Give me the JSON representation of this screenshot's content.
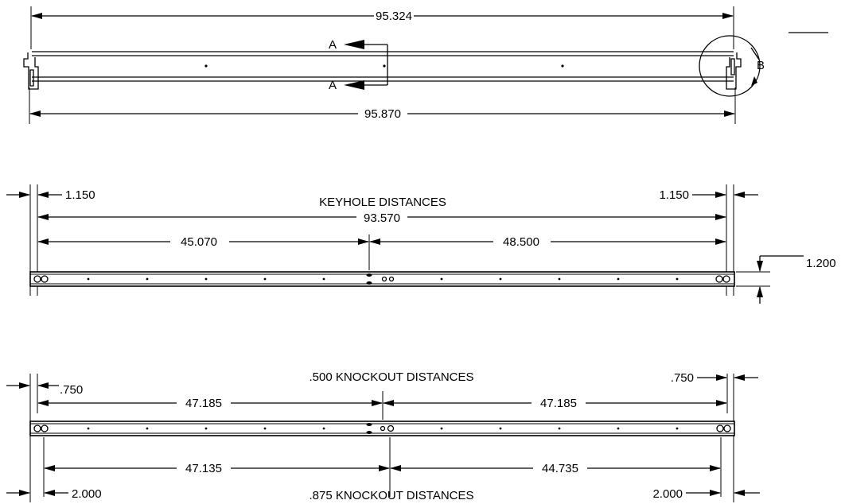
{
  "view1": {
    "overall_top": "95.324",
    "overall_bottom": "95.870",
    "section_label_top": "A",
    "section_label_bottom": "A",
    "detail_label": "B"
  },
  "view2": {
    "title": "KEYHOLE DISTANCES",
    "left_offset": "1.150",
    "right_offset": "1.150",
    "overall": "93.570",
    "left_span": "45.070",
    "right_span": "48.500",
    "height": "1.200"
  },
  "view3": {
    "title_top": ".500 KNOCKOUT DISTANCES",
    "title_bottom": ".875 KNOCKOUT DISTANCES",
    "left_offset_top": ".750",
    "right_offset_top": ".750",
    "left_span_top": "47.185",
    "right_span_top": "47.185",
    "left_span_bottom": "47.135",
    "right_span_bottom": "44.735",
    "left_offset_bottom": "2.000",
    "right_offset_bottom": "2.000"
  }
}
